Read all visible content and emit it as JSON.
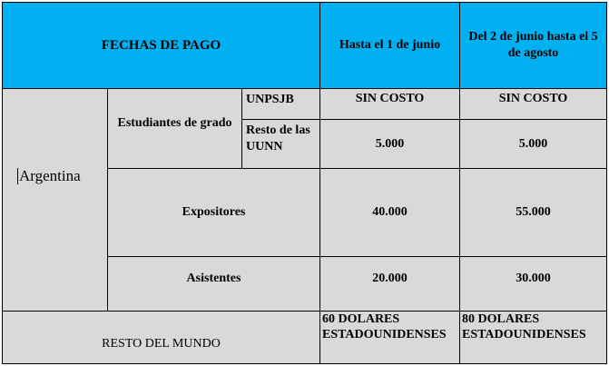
{
  "header": {
    "title": "FECHAS DE PAGO",
    "col1": "Hasta el 1 de junio",
    "col2": "Del 2 de junio hasta el 5 de agosto"
  },
  "argentina": {
    "label": "Argentina",
    "students": {
      "label": "Estudiantes de grado",
      "unpsjb": {
        "label": "UNPSJB",
        "v1": "SIN COSTO",
        "v2": "SIN COSTO"
      },
      "resto": {
        "label": "Resto de las UUNN",
        "v1": "5.000",
        "v2": "5.000"
      }
    },
    "expositores": {
      "label": "Expositores",
      "v1": "40.000",
      "v2": "55.000"
    },
    "asistentes": {
      "label": "Asistentes",
      "v1": "20.000",
      "v2": "30.000"
    }
  },
  "world": {
    "label": "RESTO DEL MUNDO",
    "v1": "60 DOLARES ESTADOUNIDENSES",
    "v2": "80 DOLARES ESTADOUNIDENSES"
  },
  "colors": {
    "header": "#00b0f0",
    "body": "#d9d9d9"
  }
}
